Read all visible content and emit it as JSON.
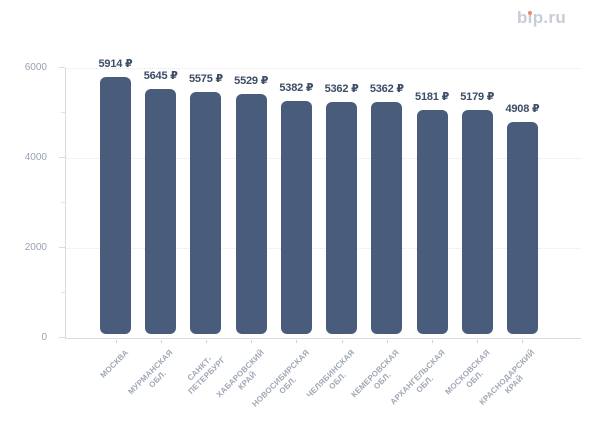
{
  "logo": {
    "text": "bip.ru",
    "accent_dot_color": "#f4876c",
    "text_color": "#c8ccd8"
  },
  "chart_data": {
    "type": "bar",
    "title": "",
    "xlabel": "",
    "ylabel": "",
    "categories": [
      "МОСКВА",
      "МУРМАНСКАЯ\nОБЛ.",
      "САНКТ-\nПЕТЕРБУРГ",
      "ХАБАРОВСКИЙ\nКРАЙ",
      "НОВОСИБИРСКАЯ\nОБЛ.",
      "ЧЕЛЯБИНСКАЯ\nОБЛ.",
      "КЕМЕРОВСКАЯ\nОБЛ.",
      "АРХАНГЕЛЬСКАЯ\nОБЛ.",
      "МОСКОВСКАЯ\nОБЛ.",
      "КРАСНОДАРСКИЙ\nКРАЙ"
    ],
    "values": [
      5914,
      5645,
      5575,
      5529,
      5382,
      5362,
      5362,
      5181,
      5179,
      4908
    ],
    "value_labels": [
      "5914 ₽",
      "5645 ₽",
      "5575 ₽",
      "5529 ₽",
      "5382 ₽",
      "5362 ₽",
      "5362 ₽",
      "5181 ₽",
      "5179 ₽",
      "4908 ₽"
    ],
    "currency": "₽",
    "ylim": [
      0,
      6000
    ],
    "y_ticks": [
      0,
      2000,
      4000,
      6000
    ],
    "y_tick_labels": [
      "0",
      "2000",
      "4000",
      "6000"
    ],
    "grid": "horizontal dotted lines at major ticks",
    "legend": "none",
    "bar_color": "#4a5c7c",
    "value_label_color": "#3c4d66",
    "axis_tick_label_color": "#99a1af"
  }
}
